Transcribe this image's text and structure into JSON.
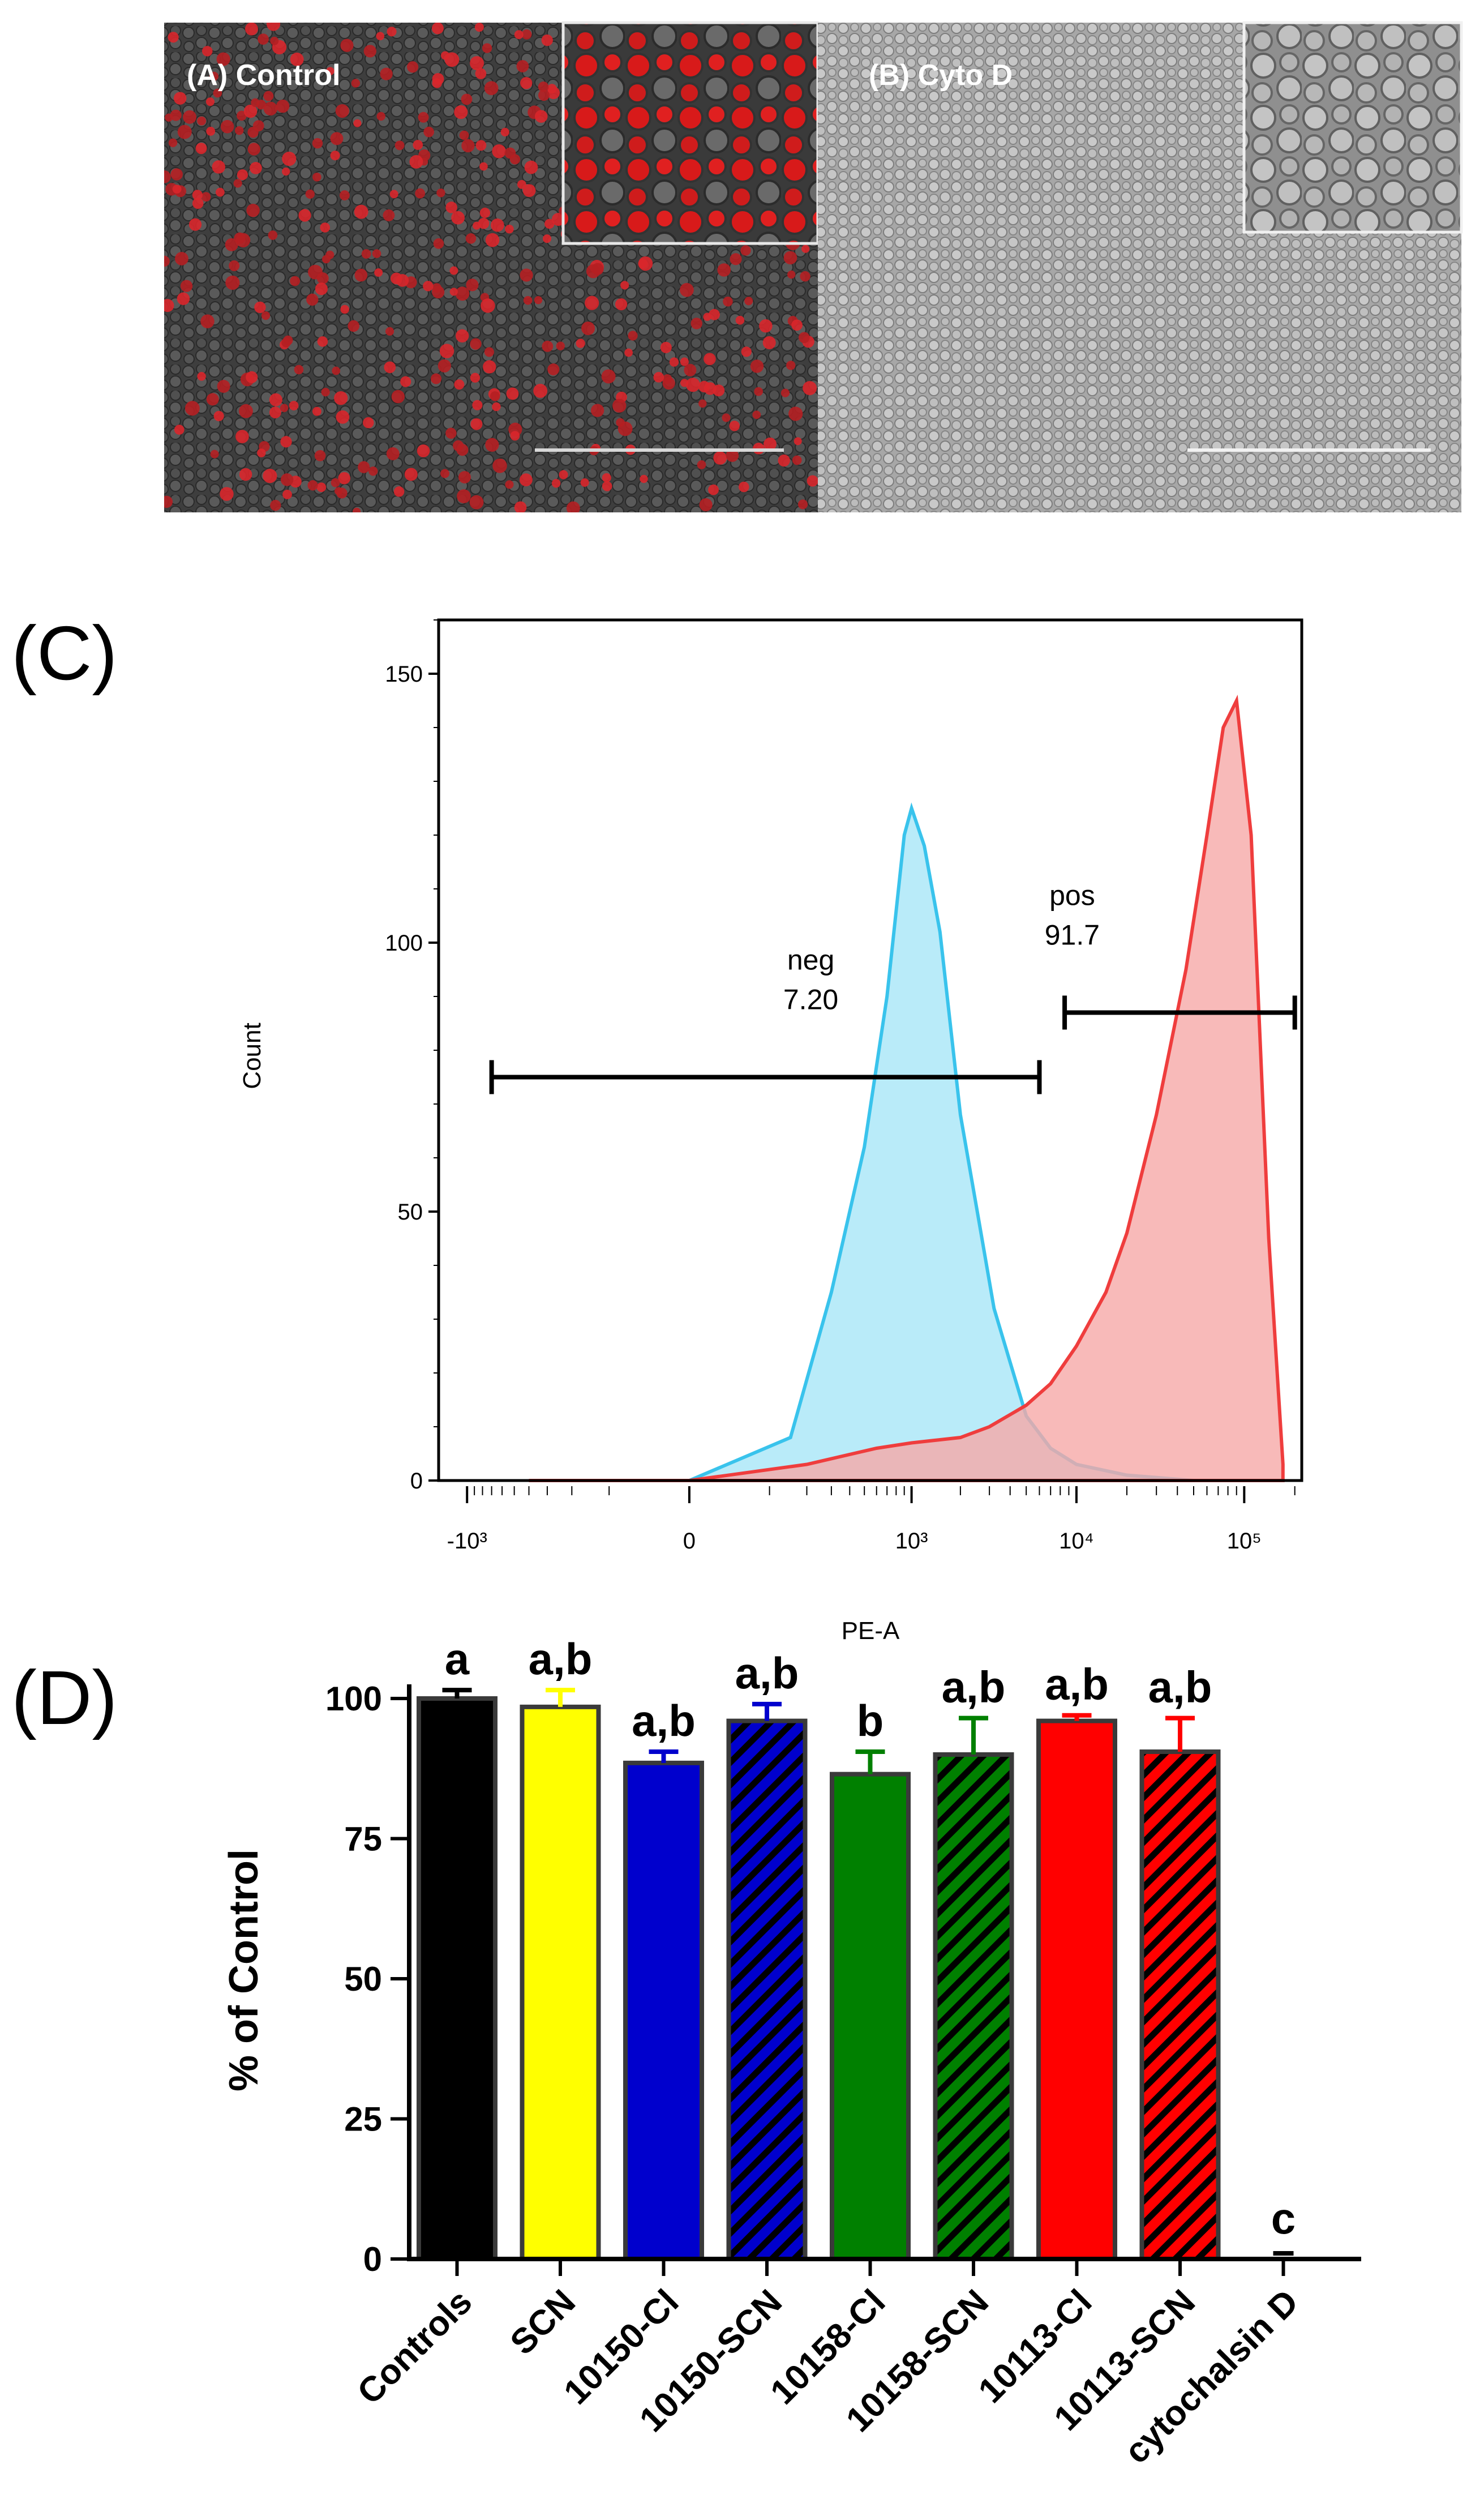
{
  "panels": {
    "A": {
      "label": "(A) Control"
    },
    "B": {
      "label": "(B) Cyto D"
    },
    "C": {
      "label": "(C)"
    },
    "D": {
      "label": "(D)"
    }
  },
  "chart_data": [
    {
      "type": "area",
      "panel": "C",
      "xlabel": "PE-A",
      "ylabel": "Count",
      "ylim": [
        0,
        160
      ],
      "y_ticks": [
        "0",
        "50",
        "100",
        "150"
      ],
      "x_ticks": [
        "-10³",
        "0",
        "10³",
        "10⁴",
        "10⁵"
      ],
      "series": [
        {
          "name": "neg",
          "color": "#39c3ec",
          "fill": "#a8e6f8",
          "x": [
            -400,
            0,
            150,
            300,
            500,
            700,
            900,
            1000,
            1200,
            1500,
            2000,
            2600,
            3200,
            4000,
            5000,
            7000,
            10000,
            20000,
            50000,
            150000
          ],
          "y": [
            0,
            0,
            8,
            35,
            62,
            90,
            120,
            125,
            118,
            102,
            68,
            48,
            32,
            22,
            12,
            6,
            3,
            1,
            0,
            0
          ]
        },
        {
          "name": "pos",
          "color": "#ef3d3d",
          "fill": "#f6a9a7",
          "x": [
            -400,
            0,
            200,
            600,
            1000,
            2000,
            3000,
            5000,
            7000,
            10000,
            15000,
            20000,
            30000,
            45000,
            60000,
            75000,
            90000,
            110000,
            140000,
            170000
          ],
          "y": [
            0,
            0,
            3,
            6,
            7,
            8,
            10,
            14,
            18,
            25,
            35,
            46,
            68,
            95,
            120,
            140,
            145,
            120,
            45,
            3
          ]
        }
      ],
      "gates": [
        {
          "name": "neg",
          "value": "7.20",
          "x_from": -700,
          "x_to": 6000,
          "y": 75
        },
        {
          "name": "pos",
          "value": "91.7",
          "x_from": 8500,
          "x_to": 200000,
          "y": 87
        }
      ]
    },
    {
      "type": "bar",
      "panel": "D",
      "ylabel": "% of Control",
      "ylim": [
        0,
        100
      ],
      "y_ticks": [
        "0",
        "25",
        "50",
        "75",
        "100"
      ],
      "categories": [
        "Controls",
        "SCN",
        "10150-Cl",
        "10150-SCN",
        "10158-Cl",
        "10158-SCN",
        "10113-Cl",
        "10113-SCN",
        "cytochalsin D"
      ],
      "values": [
        100,
        98.5,
        88.5,
        96,
        86.5,
        90,
        96,
        90.5,
        0
      ],
      "errors": [
        1.5,
        3,
        2,
        3,
        4,
        6.5,
        1,
        6,
        0
      ],
      "colors": [
        "#000000",
        "#ffff00",
        "#0000cd",
        "#0000cd",
        "#008000",
        "#008000",
        "#ff0000",
        "#ff0000",
        "#000000"
      ],
      "hatched": [
        false,
        false,
        false,
        true,
        false,
        true,
        false,
        true,
        false
      ],
      "significance": [
        "a",
        "a,b",
        "a,b",
        "a,b",
        "b",
        "a,b",
        "a,b",
        "a,b",
        "c"
      ]
    }
  ]
}
